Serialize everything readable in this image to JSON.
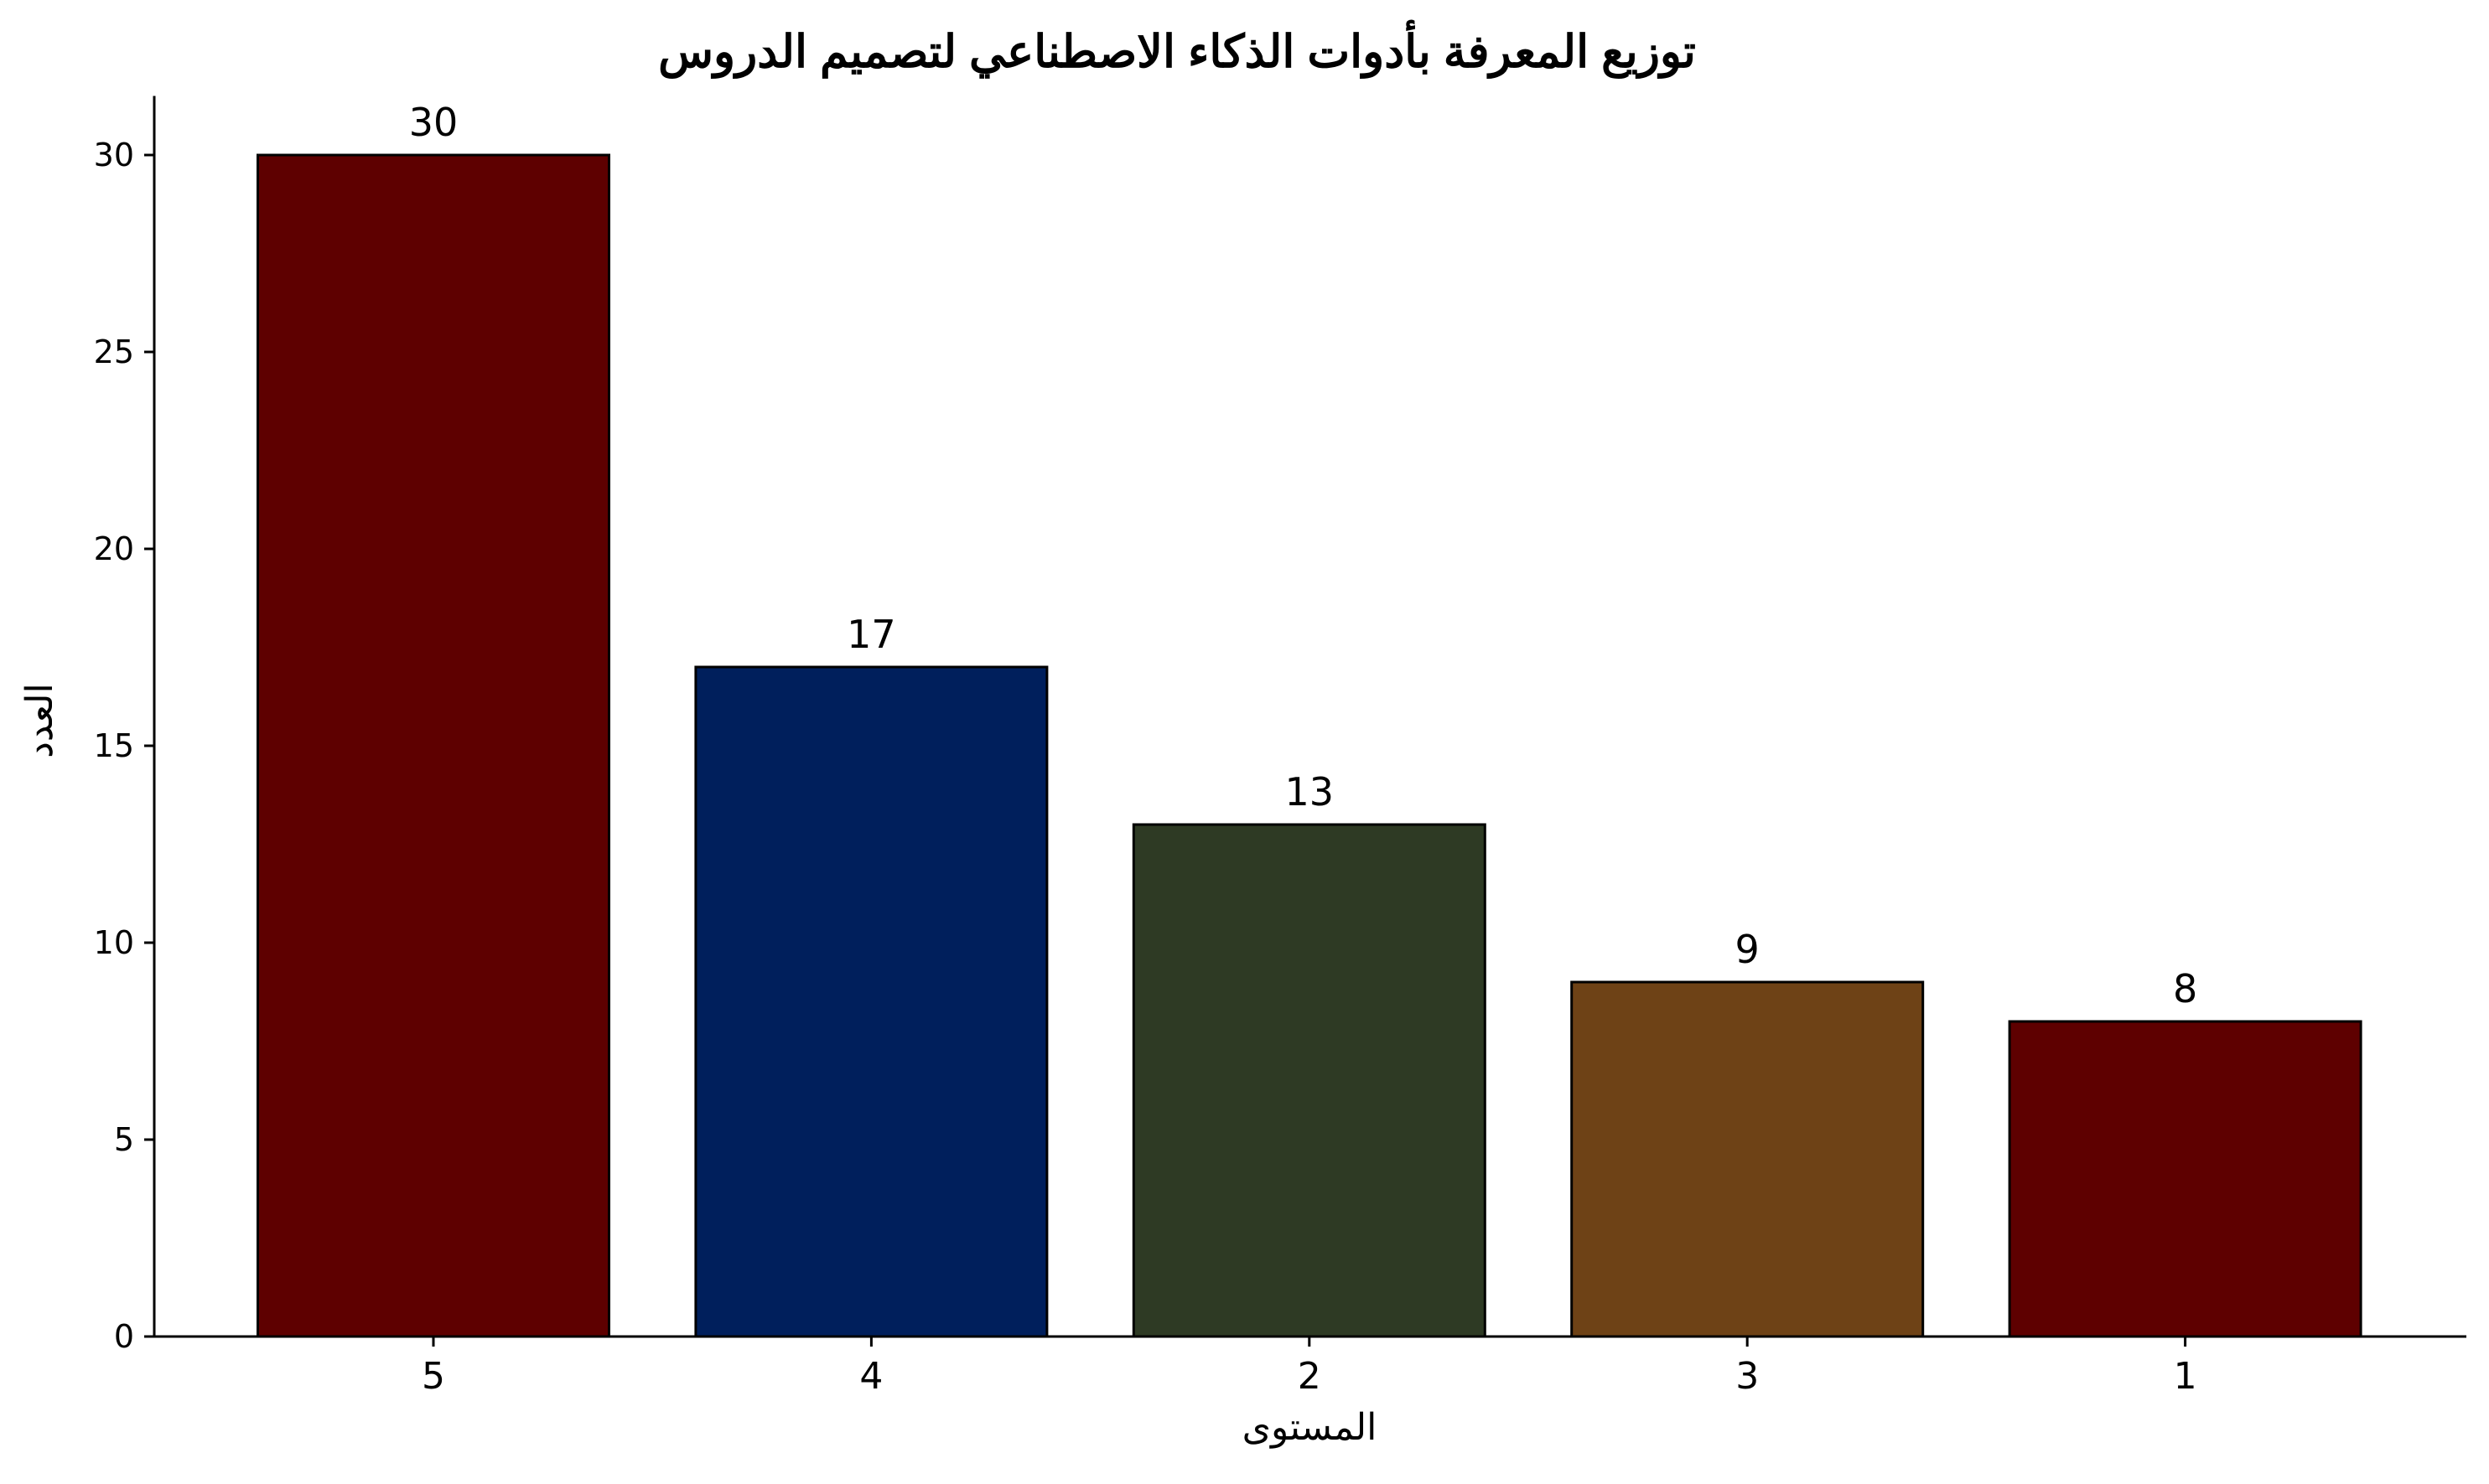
{
  "chart_data": {
    "type": "bar",
    "title": "توزيع المعرفة بأدوات الذكاء الاصطناعي لتصميم الدروس",
    "xlabel": "المستوى",
    "ylabel": "العدد",
    "categories": [
      "5",
      "4",
      "2",
      "3",
      "1"
    ],
    "values": [
      30,
      17,
      13,
      9,
      8
    ],
    "data_labels": [
      "30",
      "17",
      "13",
      "9",
      "8"
    ],
    "colors": [
      "#5e0000",
      "#001f5c",
      "#2e3a24",
      "#6e4216",
      "#5e0000"
    ],
    "ylim": [
      0,
      31.5
    ],
    "yticks": [
      0,
      5,
      10,
      15,
      20,
      25,
      30
    ],
    "ytick_labels": [
      "0",
      "5",
      "10",
      "15",
      "20",
      "25",
      "30"
    ],
    "grid": false,
    "legend": "none"
  }
}
